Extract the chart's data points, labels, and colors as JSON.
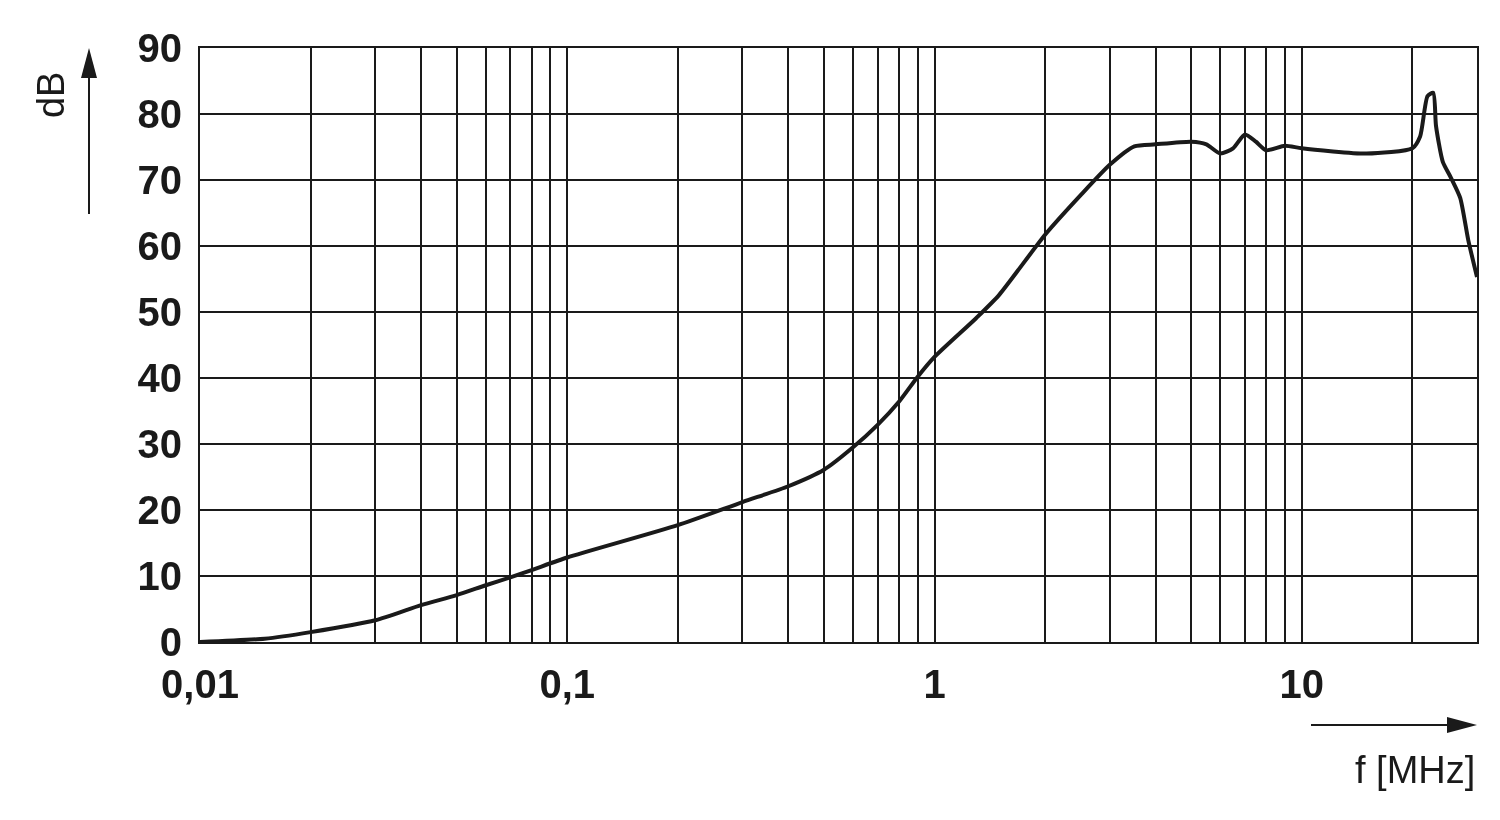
{
  "chart_data": {
    "type": "line",
    "xlabel": "f [MHz]",
    "ylabel": "dB",
    "log": "x",
    "grid": true,
    "marker": "none",
    "line_style": "solid",
    "xlim": [
      0.01,
      30
    ],
    "ylim": [
      0,
      90
    ],
    "xticks": [
      {
        "value": 0.01,
        "label": "0,01"
      },
      {
        "value": 0.02,
        "label": null
      },
      {
        "value": 0.03,
        "label": null
      },
      {
        "value": 0.04,
        "label": null
      },
      {
        "value": 0.05,
        "label": null
      },
      {
        "value": 0.06,
        "label": null
      },
      {
        "value": 0.07,
        "label": null
      },
      {
        "value": 0.08,
        "label": null
      },
      {
        "value": 0.09,
        "label": null
      },
      {
        "value": 0.1,
        "label": "0,1"
      },
      {
        "value": 0.2,
        "label": null
      },
      {
        "value": 0.3,
        "label": null
      },
      {
        "value": 0.4,
        "label": null
      },
      {
        "value": 0.5,
        "label": null
      },
      {
        "value": 0.6,
        "label": null
      },
      {
        "value": 0.7,
        "label": null
      },
      {
        "value": 0.8,
        "label": null
      },
      {
        "value": 0.9,
        "label": null
      },
      1,
      {
        "value": 2,
        "label": null
      },
      {
        "value": 3,
        "label": null
      },
      {
        "value": 4,
        "label": null
      },
      {
        "value": 5,
        "label": null
      },
      {
        "value": 6,
        "label": null
      },
      {
        "value": 7,
        "label": null
      },
      {
        "value": 8,
        "label": null
      },
      {
        "value": 9,
        "label": null
      },
      10,
      {
        "value": 20,
        "label": null
      },
      {
        "value": 30,
        "label": null
      }
    ],
    "yticks": [
      0,
      10,
      20,
      30,
      40,
      50,
      60,
      70,
      80,
      90
    ],
    "x": [
      0.01,
      0.015,
      0.02,
      0.03,
      0.04,
      0.05,
      0.06,
      0.07,
      0.08,
      0.1,
      0.2,
      0.3,
      0.4,
      0.5,
      0.6,
      0.7,
      0.8,
      0.9,
      1,
      1.3,
      1.5,
      2,
      2.5,
      3,
      3.5,
      4,
      5,
      5.5,
      6,
      6.5,
      7,
      7.5,
      8,
      9,
      10,
      15,
      20,
      21,
      22,
      22.8,
      23.2,
      24.2,
      25.5,
      27,
      28.4,
      30
    ],
    "series": [
      {
        "color": "#1a1a1a",
        "values": [
          0,
          0.5,
          1.5,
          3.3,
          5.6,
          7.1,
          8.6,
          9.8,
          10.9,
          12.8,
          17.7,
          21.2,
          23.6,
          26.1,
          29.5,
          32.9,
          36.4,
          40.2,
          43.2,
          49.1,
          52.6,
          61.7,
          67.7,
          72.3,
          75.1,
          75.4,
          75.8,
          75.4,
          74,
          74.8,
          76.9,
          75.8,
          74.5,
          75.2,
          74.8,
          74,
          74.8,
          76.6,
          82.7,
          83.2,
          78.2,
          72.8,
          70.3,
          67.3,
          60.9,
          55.3
        ]
      }
    ]
  }
}
